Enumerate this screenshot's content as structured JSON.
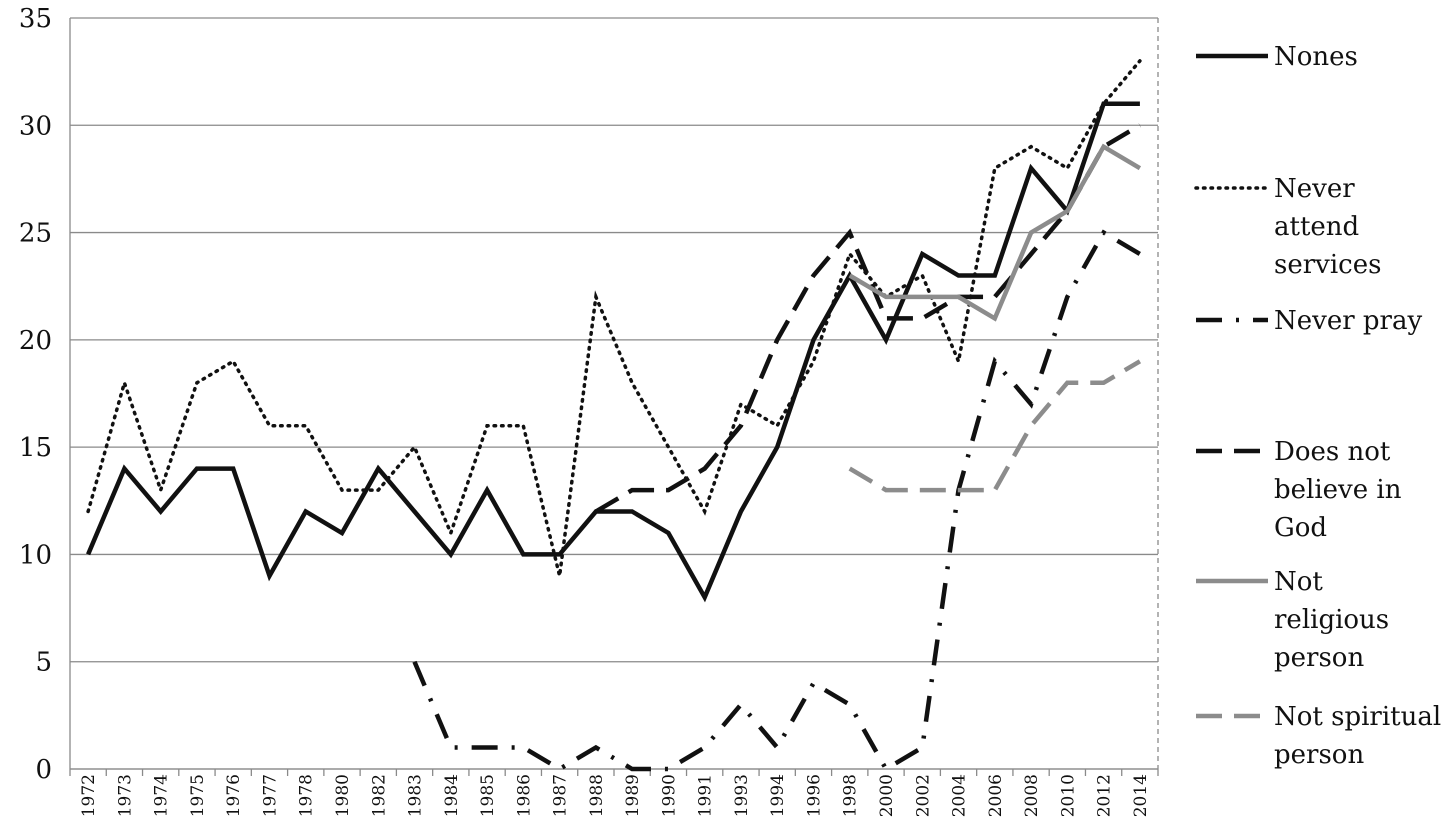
{
  "chart_data": {
    "type": "line",
    "title": "",
    "xlabel": "",
    "ylabel": "",
    "ylim": [
      0,
      35
    ],
    "yticks": [
      0,
      5,
      10,
      15,
      20,
      25,
      30,
      35
    ],
    "grid": "horizontal",
    "legend_position": "right",
    "categories": [
      "1972",
      "1973",
      "1974",
      "1975",
      "1976",
      "1977",
      "1978",
      "1980",
      "1982",
      "1983",
      "1984",
      "1985",
      "1986",
      "1987",
      "1988",
      "1989",
      "1990",
      "1991",
      "1993",
      "1994",
      "1996",
      "1998",
      "2000",
      "2002",
      "2004",
      "2006",
      "2008",
      "2010",
      "2012",
      "2014"
    ],
    "series": [
      {
        "name": "Nones",
        "legend_lines": [
          "Nones"
        ],
        "color": "#111111",
        "style": "solid",
        "values": [
          10,
          14,
          12,
          14,
          14,
          9,
          12,
          11,
          14,
          12,
          10,
          13,
          10,
          10,
          12,
          12,
          11,
          8,
          12,
          15,
          20,
          23,
          20,
          24,
          23,
          23,
          28,
          26,
          31,
          31
        ]
      },
      {
        "name": "Never attend services",
        "legend_lines": [
          "Never",
          "attend",
          "services"
        ],
        "color": "#111111",
        "style": "dotted",
        "values": [
          12,
          18,
          13,
          18,
          19,
          16,
          16,
          13,
          13,
          15,
          11,
          16,
          16,
          9,
          22,
          18,
          15,
          12,
          17,
          16,
          19,
          24,
          22,
          23,
          19,
          28,
          29,
          28,
          31,
          33
        ]
      },
      {
        "name": "Never pray",
        "legend_lines": [
          "Never pray"
        ],
        "color": "#111111",
        "style": "dashdot",
        "values": [
          null,
          null,
          null,
          null,
          null,
          null,
          null,
          null,
          null,
          5,
          1,
          1,
          1,
          0,
          1,
          0,
          0,
          1,
          3,
          1,
          4,
          3,
          0,
          1,
          13,
          19,
          17,
          22,
          25,
          24
        ]
      },
      {
        "name": "Does not believe in God",
        "legend_lines": [
          "Does not",
          "believe in",
          "God"
        ],
        "color": "#111111",
        "style": "dashed",
        "values": [
          null,
          null,
          null,
          null,
          null,
          null,
          null,
          null,
          null,
          null,
          null,
          null,
          null,
          null,
          12,
          13,
          13,
          14,
          16,
          20,
          23,
          25,
          21,
          21,
          22,
          22,
          24,
          26,
          29,
          30
        ]
      },
      {
        "name": "Not religious person",
        "legend_lines": [
          "Not",
          "religious",
          "person"
        ],
        "color": "#8c8c8c",
        "style": "solid",
        "values": [
          null,
          null,
          null,
          null,
          null,
          null,
          null,
          null,
          null,
          null,
          null,
          null,
          null,
          null,
          null,
          null,
          null,
          null,
          null,
          null,
          null,
          23,
          22,
          22,
          22,
          21,
          25,
          26,
          29,
          28
        ]
      },
      {
        "name": "Not spiritual person",
        "legend_lines": [
          "Not spiritual",
          "person"
        ],
        "color": "#8c8c8c",
        "style": "dashed",
        "values": [
          null,
          null,
          null,
          null,
          null,
          null,
          null,
          null,
          null,
          null,
          null,
          null,
          null,
          null,
          null,
          null,
          null,
          null,
          null,
          null,
          null,
          14,
          13,
          13,
          13,
          13,
          16,
          18,
          18,
          19
        ]
      }
    ]
  }
}
